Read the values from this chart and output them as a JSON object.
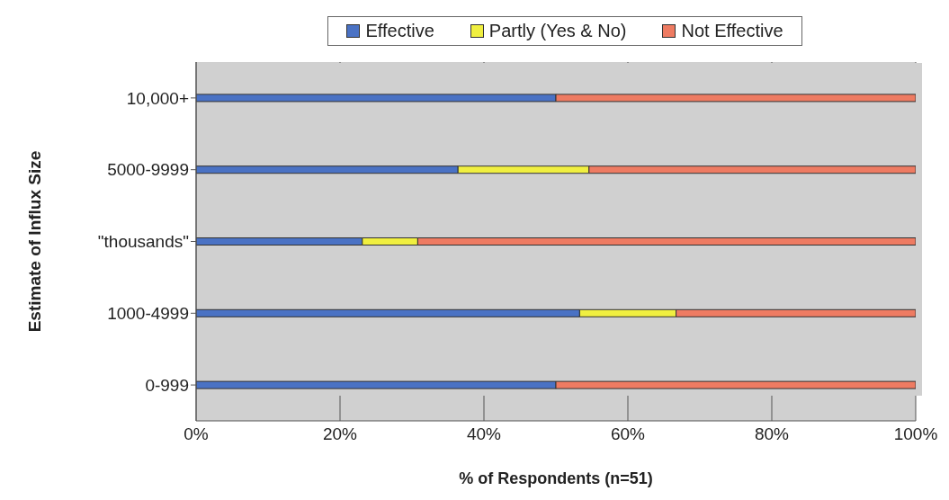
{
  "chart_data": {
    "type": "bar",
    "orientation": "horizontal",
    "stacked": true,
    "xlabel": "% of Respondents (n=51)",
    "ylabel": "Estimate of Influx Size",
    "categories": [
      "10,000+",
      "5000-9999",
      "\"thousands\"",
      "1000-4999",
      "0-999"
    ],
    "series": [
      {
        "name": "Effective",
        "color": "#4a72c4",
        "values": [
          50,
          36.4,
          23.1,
          53.3,
          50
        ]
      },
      {
        "name": "Partly (Yes & No)",
        "color": "#f0ef40",
        "values": [
          0,
          18.2,
          7.7,
          13.4,
          0
        ]
      },
      {
        "name": "Not Effective",
        "color": "#ee7b62",
        "values": [
          50,
          45.4,
          69.2,
          33.3,
          50
        ]
      }
    ],
    "xlim": [
      0,
      100
    ],
    "xticks": [
      {
        "value": 0,
        "label": "0%"
      },
      {
        "value": 20,
        "label": "20%"
      },
      {
        "value": 40,
        "label": "40%"
      },
      {
        "value": 60,
        "label": "60%"
      },
      {
        "value": 80,
        "label": "80%"
      },
      {
        "value": 100,
        "label": "100%"
      }
    ],
    "grid": "x",
    "legend": "top"
  }
}
